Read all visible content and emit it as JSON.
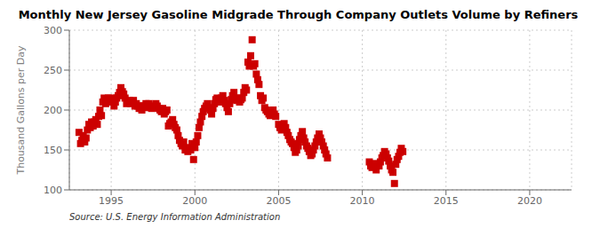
{
  "chart_data": {
    "type": "scatter",
    "title": "Monthly New Jersey Gasoline Midgrade Through Company Outlets Volume by Refiners",
    "ylabel": "Thousand Gallons per Day",
    "annotation": "Source: U.S. Energy Information Administration",
    "color": "#cc0000",
    "marker": "square",
    "grid": true,
    "xlim": [
      1992.5,
      2022.5
    ],
    "ylim": [
      100,
      300
    ],
    "xticks": [
      1995,
      2000,
      2005,
      2010,
      2015,
      2020
    ],
    "yticks": [
      100,
      150,
      200,
      250,
      300
    ],
    "x": [
      1993.08,
      1993.17,
      1993.25,
      1993.33,
      1993.42,
      1993.5,
      1993.58,
      1993.67,
      1993.75,
      1993.83,
      1993.92,
      1994.0,
      1994.08,
      1994.17,
      1994.25,
      1994.33,
      1994.42,
      1994.5,
      1994.58,
      1994.67,
      1994.75,
      1994.83,
      1994.92,
      1995.0,
      1995.08,
      1995.17,
      1995.25,
      1995.33,
      1995.42,
      1995.5,
      1995.58,
      1995.67,
      1995.75,
      1995.83,
      1995.92,
      1996.0,
      1996.08,
      1996.17,
      1996.25,
      1996.33,
      1996.42,
      1996.5,
      1996.58,
      1996.67,
      1996.75,
      1996.83,
      1996.92,
      1997.0,
      1997.08,
      1997.17,
      1997.25,
      1997.33,
      1997.42,
      1997.5,
      1997.58,
      1997.67,
      1997.75,
      1997.83,
      1997.92,
      1998.0,
      1998.08,
      1998.17,
      1998.25,
      1998.33,
      1998.42,
      1998.5,
      1998.58,
      1998.67,
      1998.75,
      1998.83,
      1998.92,
      1999.0,
      1999.08,
      1999.17,
      1999.25,
      1999.33,
      1999.42,
      1999.5,
      1999.58,
      1999.67,
      1999.75,
      1999.83,
      1999.92,
      2000.0,
      2000.08,
      2000.17,
      2000.25,
      2000.33,
      2000.42,
      2000.5,
      2000.58,
      2000.67,
      2000.75,
      2000.83,
      2000.92,
      2001.0,
      2001.08,
      2001.17,
      2001.25,
      2001.33,
      2001.42,
      2001.5,
      2001.58,
      2001.67,
      2001.75,
      2001.83,
      2001.92,
      2002.0,
      2002.08,
      2002.17,
      2002.25,
      2002.33,
      2002.42,
      2002.5,
      2002.58,
      2002.67,
      2002.75,
      2002.83,
      2002.92,
      2003.0,
      2003.08,
      2003.17,
      2003.25,
      2003.33,
      2003.42,
      2003.5,
      2003.58,
      2003.67,
      2003.75,
      2003.83,
      2003.92,
      2004.0,
      2004.08,
      2004.17,
      2004.25,
      2004.33,
      2004.42,
      2004.5,
      2004.58,
      2004.67,
      2004.75,
      2004.83,
      2005.0,
      2005.08,
      2005.17,
      2005.25,
      2005.33,
      2005.42,
      2005.5,
      2005.58,
      2005.67,
      2005.75,
      2005.83,
      2005.92,
      2006.0,
      2006.08,
      2006.17,
      2006.25,
      2006.33,
      2006.42,
      2006.5,
      2006.58,
      2006.67,
      2006.75,
      2006.83,
      2006.92,
      2007.0,
      2007.08,
      2007.17,
      2007.25,
      2007.33,
      2007.42,
      2007.5,
      2007.58,
      2007.67,
      2007.75,
      2007.83,
      2007.92,
      2010.42,
      2010.5,
      2010.58,
      2010.67,
      2010.75,
      2010.83,
      2011.0,
      2011.08,
      2011.17,
      2011.25,
      2011.33,
      2011.42,
      2011.5,
      2011.58,
      2011.67,
      2011.75,
      2011.83,
      2011.92,
      2012.0,
      2012.08,
      2012.17,
      2012.25,
      2012.33,
      2012.42
    ],
    "values": [
      172,
      158,
      162,
      168,
      160,
      165,
      175,
      182,
      178,
      185,
      180,
      185,
      188,
      182,
      192,
      200,
      193,
      210,
      215,
      208,
      212,
      215,
      210,
      215,
      210,
      205,
      210,
      215,
      218,
      222,
      228,
      223,
      220,
      215,
      208,
      210,
      212,
      208,
      210,
      212,
      205,
      208,
      205,
      202,
      205,
      200,
      205,
      205,
      208,
      203,
      208,
      205,
      202,
      205,
      203,
      208,
      205,
      202,
      200,
      198,
      202,
      195,
      198,
      200,
      180,
      183,
      185,
      188,
      182,
      178,
      175,
      168,
      162,
      158,
      155,
      160,
      150,
      152,
      148,
      153,
      150,
      158,
      138,
      153,
      160,
      168,
      178,
      185,
      192,
      198,
      202,
      205,
      208,
      203,
      200,
      195,
      202,
      208,
      213,
      215,
      210,
      212,
      215,
      218,
      212,
      208,
      203,
      198,
      208,
      213,
      218,
      222,
      215,
      212,
      215,
      210,
      213,
      215,
      222,
      228,
      225,
      260,
      255,
      268,
      288,
      255,
      258,
      245,
      238,
      232,
      218,
      212,
      215,
      203,
      200,
      198,
      195,
      193,
      198,
      200,
      195,
      192,
      182,
      178,
      175,
      180,
      183,
      178,
      172,
      168,
      163,
      160,
      158,
      153,
      147,
      150,
      155,
      163,
      168,
      173,
      165,
      160,
      155,
      152,
      148,
      143,
      145,
      150,
      155,
      160,
      165,
      170,
      165,
      160,
      155,
      150,
      145,
      140,
      135,
      130,
      128,
      133,
      130,
      125,
      130,
      135,
      140,
      143,
      148,
      145,
      140,
      136,
      130,
      125,
      122,
      108,
      132,
      138,
      142,
      147,
      152,
      148
    ]
  }
}
